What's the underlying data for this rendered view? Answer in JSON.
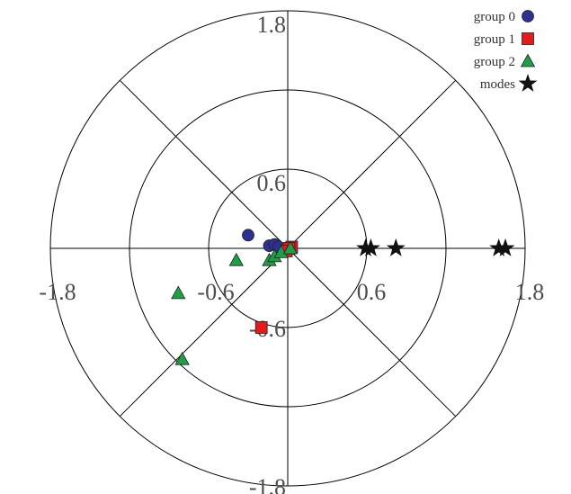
{
  "chart_data": {
    "type": "scatter",
    "subtype": "polar",
    "title": "",
    "ring_values": [
      0.6,
      1.2,
      1.8
    ],
    "tick_labels": [
      {
        "text": "1.8",
        "position": "top-outer"
      },
      {
        "text": "0.6",
        "position": "top-inner"
      },
      {
        "text": "-1.8",
        "position": "left-outer"
      },
      {
        "text": "-0.6",
        "position": "left-inner"
      },
      {
        "text": "0.6",
        "position": "right-inner"
      },
      {
        "text": "1.8",
        "position": "right-outer"
      },
      {
        "text": "-0.6",
        "position": "bottom-inner"
      },
      {
        "text": "-1.8",
        "position": "bottom-outer"
      }
    ],
    "radial_spokes_deg": [
      0,
      45,
      90,
      135,
      180,
      225,
      270,
      315
    ],
    "legend_position": "top-right",
    "series": [
      {
        "name": "group 0",
        "marker": "circle",
        "color": "#2e3192",
        "points": [
          {
            "x": -0.3,
            "y": 0.1
          },
          {
            "x": -0.14,
            "y": 0.02
          },
          {
            "x": -0.1,
            "y": 0.03
          },
          {
            "x": -0.07,
            "y": 0.01
          }
        ]
      },
      {
        "name": "group 1",
        "marker": "square",
        "color": "#e41a1c",
        "points": [
          {
            "x": 0.03,
            "y": 0.01
          },
          {
            "x": 0.01,
            "y": 0.0
          },
          {
            "x": -0.01,
            "y": -0.02
          },
          {
            "x": -0.2,
            "y": -0.6
          }
        ]
      },
      {
        "name": "group 2",
        "marker": "triangle",
        "color": "#1f9e48",
        "points": [
          {
            "x": -0.39,
            "y": -0.09
          },
          {
            "x": -0.14,
            "y": -0.09
          },
          {
            "x": -0.1,
            "y": -0.06
          },
          {
            "x": -0.05,
            "y": -0.03
          },
          {
            "x": 0.02,
            "y": 0.0
          },
          {
            "x": -0.83,
            "y": -0.34
          },
          {
            "x": -0.8,
            "y": -0.84
          }
        ]
      },
      {
        "name": "modes",
        "marker": "star",
        "color": "#111111",
        "points": [
          {
            "x": 0.59,
            "y": 0.0
          },
          {
            "x": 0.63,
            "y": 0.0
          },
          {
            "x": 0.82,
            "y": 0.0
          },
          {
            "x": 1.6,
            "y": 0.0
          },
          {
            "x": 1.65,
            "y": 0.0
          }
        ]
      }
    ]
  }
}
